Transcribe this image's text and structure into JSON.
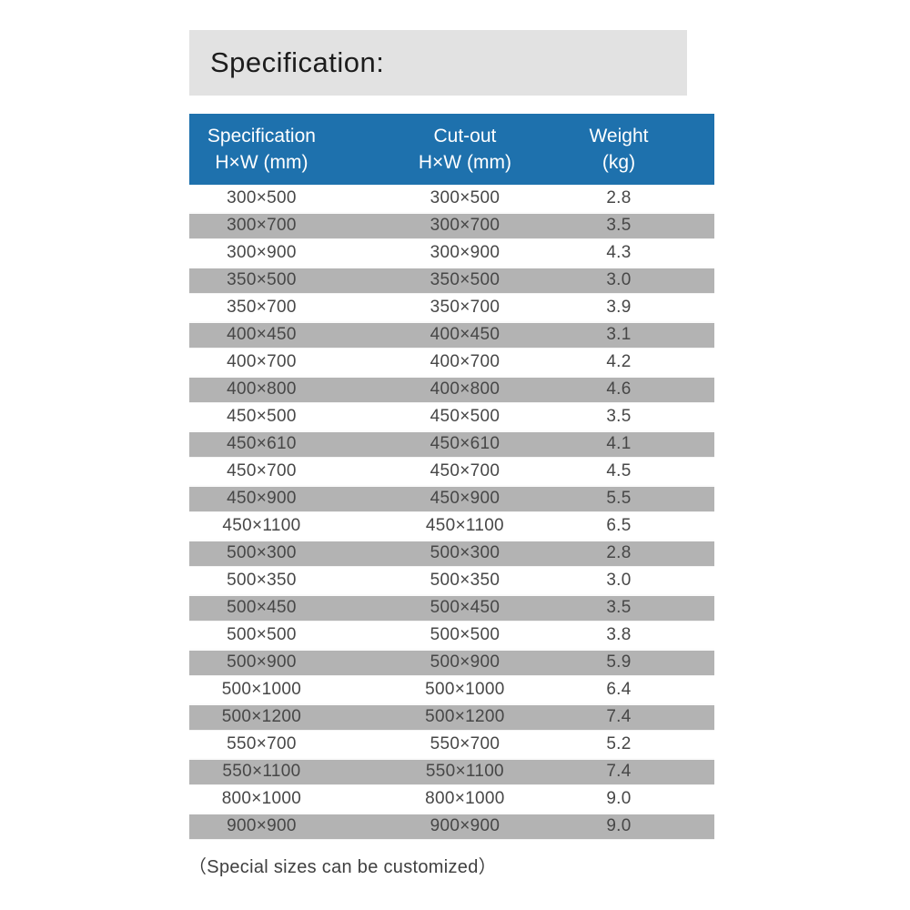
{
  "colors": {
    "accent_blue": "#1e71ad",
    "stripe_gray": "#b3b3b3",
    "banner_gray": "#e2e2e2",
    "header_text": "#ffffff",
    "body_text": "#474747"
  },
  "title_banner": {
    "text": "Specification:"
  },
  "table": {
    "columns": [
      {
        "line1": "Specification",
        "line2": "H×W  (mm)"
      },
      {
        "line1": "Cut-out",
        "line2": "H×W  (mm)"
      },
      {
        "line1": "Weight",
        "line2": "(kg)"
      }
    ],
    "rows": [
      [
        "300×500",
        "300×500",
        "2.8"
      ],
      [
        "300×700",
        "300×700",
        "3.5"
      ],
      [
        "300×900",
        "300×900",
        "4.3"
      ],
      [
        "350×500",
        "350×500",
        "3.0"
      ],
      [
        "350×700",
        "350×700",
        "3.9"
      ],
      [
        "400×450",
        "400×450",
        "3.1"
      ],
      [
        "400×700",
        "400×700",
        "4.2"
      ],
      [
        "400×800",
        "400×800",
        "4.6"
      ],
      [
        "450×500",
        "450×500",
        "3.5"
      ],
      [
        "450×610",
        "450×610",
        "4.1"
      ],
      [
        "450×700",
        "450×700",
        "4.5"
      ],
      [
        "450×900",
        "450×900",
        "5.5"
      ],
      [
        "450×1100",
        "450×1100",
        "6.5"
      ],
      [
        "500×300",
        "500×300",
        "2.8"
      ],
      [
        "500×350",
        "500×350",
        "3.0"
      ],
      [
        "500×450",
        "500×450",
        "3.5"
      ],
      [
        "500×500",
        "500×500",
        "3.8"
      ],
      [
        "500×900",
        "500×900",
        "5.9"
      ],
      [
        "500×1000",
        "500×1000",
        "6.4"
      ],
      [
        "500×1200",
        "500×1200",
        "7.4"
      ],
      [
        "550×700",
        "550×700",
        "5.2"
      ],
      [
        "550×1100",
        "550×1100",
        "7.4"
      ],
      [
        "800×1000",
        "800×1000",
        "9.0"
      ],
      [
        "900×900",
        "900×900",
        "9.0"
      ]
    ]
  },
  "footer": {
    "note": "（Special sizes can be customized）"
  }
}
